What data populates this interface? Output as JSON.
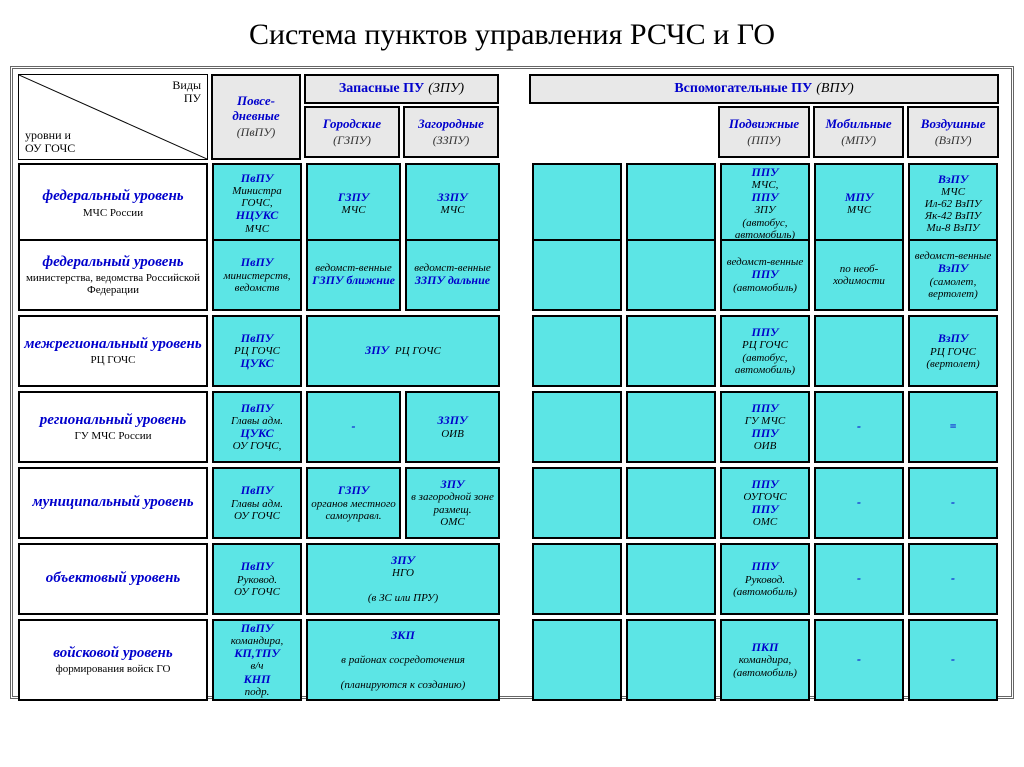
{
  "title": "Система пунктов управления  РСЧС и ГО",
  "colors": {
    "cell_bg": "#5ce5e5",
    "header_bg": "#e8e8e8",
    "accent": "#0000cc",
    "border": "#000000",
    "page_bg": "#ffffff"
  },
  "corner": {
    "top": "Виды\nПУ",
    "bottom": "уровни    и\nОУ  ГОЧС"
  },
  "headers": {
    "col1": {
      "main": "Повсе-\nдневные",
      "sub": "(ПвПУ)"
    },
    "group_zpu": {
      "title": "Запасные  ПУ",
      "title_sub": "(ЗПУ)",
      "cols": [
        {
          "main": "Городские",
          "sub": "(ГЗПУ)"
        },
        {
          "main": "Загородные",
          "sub": "(ЗЗПУ)"
        }
      ]
    },
    "group_vpu": {
      "title": "Вспомогательные  ПУ",
      "title_sub": "(ВПУ)",
      "cols": [
        {
          "main": "",
          "sub": ""
        },
        {
          "main": "",
          "sub": ""
        },
        {
          "main": "Подвижные",
          "sub": "(ППУ)"
        },
        {
          "main": "Мобильные",
          "sub": "(МПУ)"
        },
        {
          "main": "Воздушные",
          "sub": "(ВзПУ)"
        }
      ]
    }
  },
  "row_labels": [
    {
      "level": "федеральный уровень",
      "org": "МЧС  России"
    },
    {
      "level": "федеральный уровень",
      "org": "министерства, ведомства Российской  Федерации"
    },
    {
      "level": "межрегиональный уровень",
      "org": "РЦ  ГОЧС"
    },
    {
      "level": "региональный уровень",
      "org": "ГУ   МЧС России"
    },
    {
      "level": "муниципальный уровень",
      "org": ""
    },
    {
      "level": "объектовый уровень",
      "org": ""
    },
    {
      "level": "войсковой уровень",
      "org": "формирования  войск  ГО"
    }
  ],
  "cells": {
    "r0": {
      "c1": "<span class='b'>ПвПУ</span><span class='t'>Министра ГОЧС,</span><span class='b'>НЦУКС</span> <span class='t'>МЧС</span>",
      "c2": "<span class='b'>ГЗПУ</span><span class='t'>МЧС</span>",
      "c3": "<span class='b'>ЗЗПУ</span><span class='t'>МЧС</span>",
      "c6": "<span class='b'>ППУ</span> <span class='t'>МЧС,</span><span class='b'>ППУ</span> <span class='t'>ЗПУ</span><span class='t'>(автобус, автомобиль)</span>",
      "c7": "<span class='b'>МПУ</span><span class='t'>МЧС</span>",
      "c8": "<span class='b'>ВзПУ</span> <span class='t'>МЧС</span><span class='t'>Ил-62 ВзПУ</span><span class='t'>Як-42 ВзПУ</span><span class='t'>Ми-8  ВзПУ</span>"
    },
    "r1": {
      "c1": "<span class='b'>ПвПУ</span><span class='t'>министерств, ведомств</span>",
      "c2": "<span class='t'>ведомст-венные</span><span class='b'>ГЗПУ ближние</span>",
      "c3": "<span class='t'>ведомст-венные</span><span class='b'>ЗЗПУ дальние</span>",
      "c6": "<span class='t'>ведомст-венные</span><span class='b'>ППУ</span><span class='t'>(автомобиль)</span>",
      "c7": "<span class='t'>по  необ-ходимости</span>",
      "c8": "<span class='t'>ведомст-венные</span><span class='b'>ВзПУ</span><span class='t'>(самолет, вертолет)</span>"
    },
    "r2": {
      "c1": "<span class='b'>ПвПУ</span><span class='t'>РЦ  ГОЧС</span><span class='b'>ЦУКС</span>",
      "c23": "<span class='b'>ЗПУ</span>  <span class='t'>РЦ  ГОЧС</span>",
      "c6": "<span class='b'>ППУ</span><span class='t'>РЦ  ГОЧС</span><span class='t'>(автобус, автомобиль)</span>",
      "c8": "<span class='b'>ВзПУ</span><span class='t'>РЦ  ГОЧС</span><span class='t'>(вертолет)</span>"
    },
    "r3": {
      "c1": "<span class='b'>ПвПУ</span><span class='t'>Главы адм.</span><span class='b'>ЦУКС</span><span class='t'>ОУ  ГОЧС,</span>",
      "c2": "<span class='b'>-</span>",
      "c3": "<span class='b'>ЗЗПУ</span><span class='t'>ОИВ</span>",
      "c6": "<span class='b'>ППУ</span><span class='t'>ГУ МЧС</span><span class='b'>ППУ</span><span class='t'>ОИВ</span>",
      "c7": "<span class='b'>-</span>",
      "c8": "<span class='b'>=</span>"
    },
    "r4": {
      "c1": "<span class='b'>ПвПУ</span><span class='t'>Главы адм.</span><span class='t'>ОУ  ГОЧС</span>",
      "c2": "<span class='b'>ГЗПУ</span><span class='t'>органов местного самоуправл.</span>",
      "c3": "<span class='b'>ЗПУ</span><span class='t'>в загородной зоне размещ.</span><span class='t'>ОМС</span>",
      "c6": "<span class='b'>ППУ</span><span class='t'>ОУГОЧС</span><span class='b'>ППУ</span><span class='t'>ОМС</span>",
      "c7": "<span class='b'>-</span>",
      "c8": "<span class='b'>-</span>"
    },
    "r5": {
      "c1": "<span class='b'>ПвПУ</span><span class='t'>Руковод.</span><span class='t'>ОУ  ГОЧС</span>",
      "c23": "<span class='b'>ЗПУ</span>  <span class='t'>НГО</span><br><span class='t'>(в  ЗС  или  ПРУ)</span>",
      "c6": "<span class='b'>ППУ</span><span class='t'>Руковод.</span><span class='t'>(автомобиль)</span>",
      "c7": "<span class='b'>-</span>",
      "c8": "<span class='b'>-</span>"
    },
    "r6": {
      "c1": "<span class='b'>ПвПУ</span><span class='t'>командира,</span><span class='b'>КП,ТПУ</span> <span class='t'>в/ч</span><span class='b'>КНП</span> <span class='t'>подр.</span>",
      "c23": "<span class='b'>ЗКП</span><br><span class='t'>в районах сосредоточения</span><br><span class='t'>(планируются к созданию)</span>",
      "c6": "<span class='b'>ПКП</span><span class='t'>командира,</span><span class='t'>(автомобиль)</span>",
      "c7": "<span class='b'>-</span>",
      "c8": "<span class='b'>-</span>"
    }
  }
}
